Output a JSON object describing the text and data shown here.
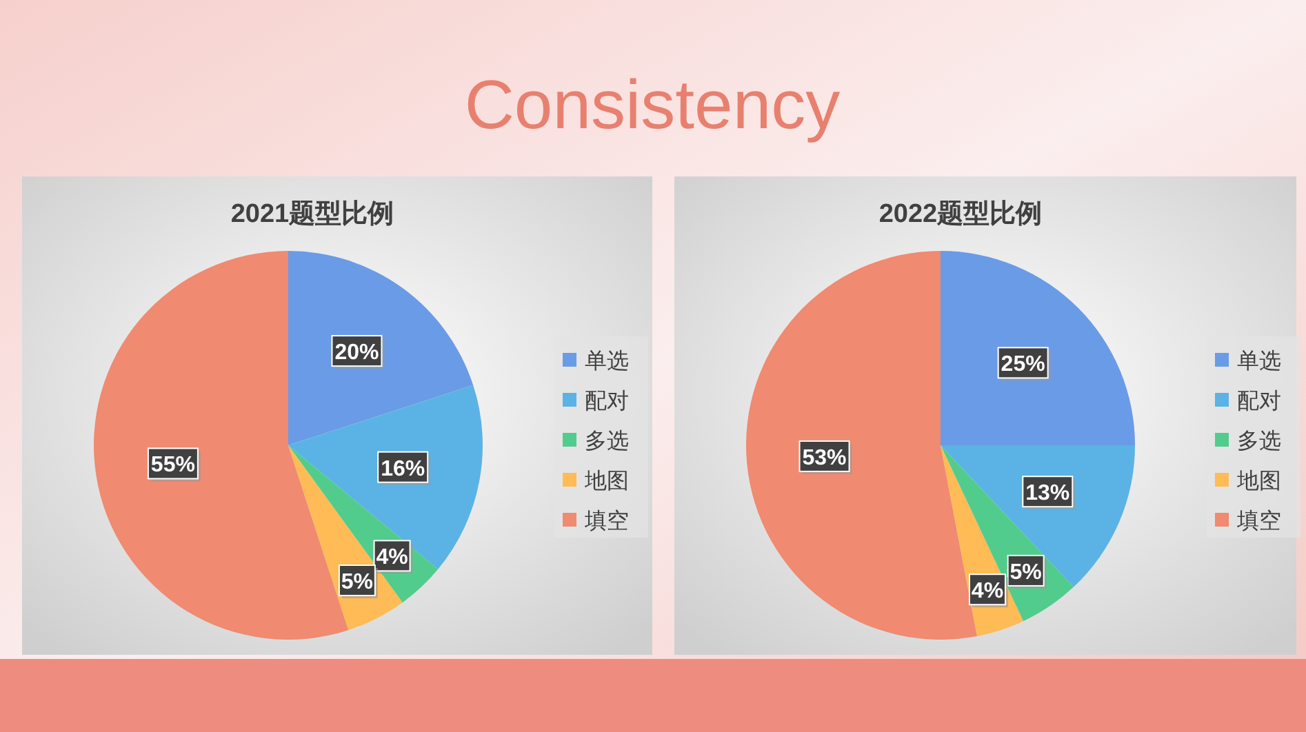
{
  "chart_data": [
    {
      "type": "pie",
      "title": "2021题型比例",
      "annotations": [
        "Consistency"
      ],
      "categories": [
        "单选",
        "配对",
        "多选",
        "地图",
        "填空"
      ],
      "values": [
        20,
        16,
        4,
        5,
        55
      ],
      "value_labels": [
        "20%",
        "16%",
        "4%",
        "5%",
        "55%"
      ],
      "colors": [
        "#6a9be6",
        "#5ab3e4",
        "#52cc8c",
        "#ffbb55",
        "#f08a70"
      ],
      "legend": "right"
    },
    {
      "type": "pie",
      "title": "2022题型比例",
      "categories": [
        "单选",
        "配对",
        "多选",
        "地图",
        "填空"
      ],
      "values": [
        25,
        13,
        5,
        4,
        53
      ],
      "value_labels": [
        "25%",
        "13%",
        "5%",
        "4%",
        "53%"
      ],
      "colors": [
        "#6a9be6",
        "#5ab3e4",
        "#52cc8c",
        "#ffbb55",
        "#f08a70"
      ],
      "legend": "right"
    }
  ]
}
